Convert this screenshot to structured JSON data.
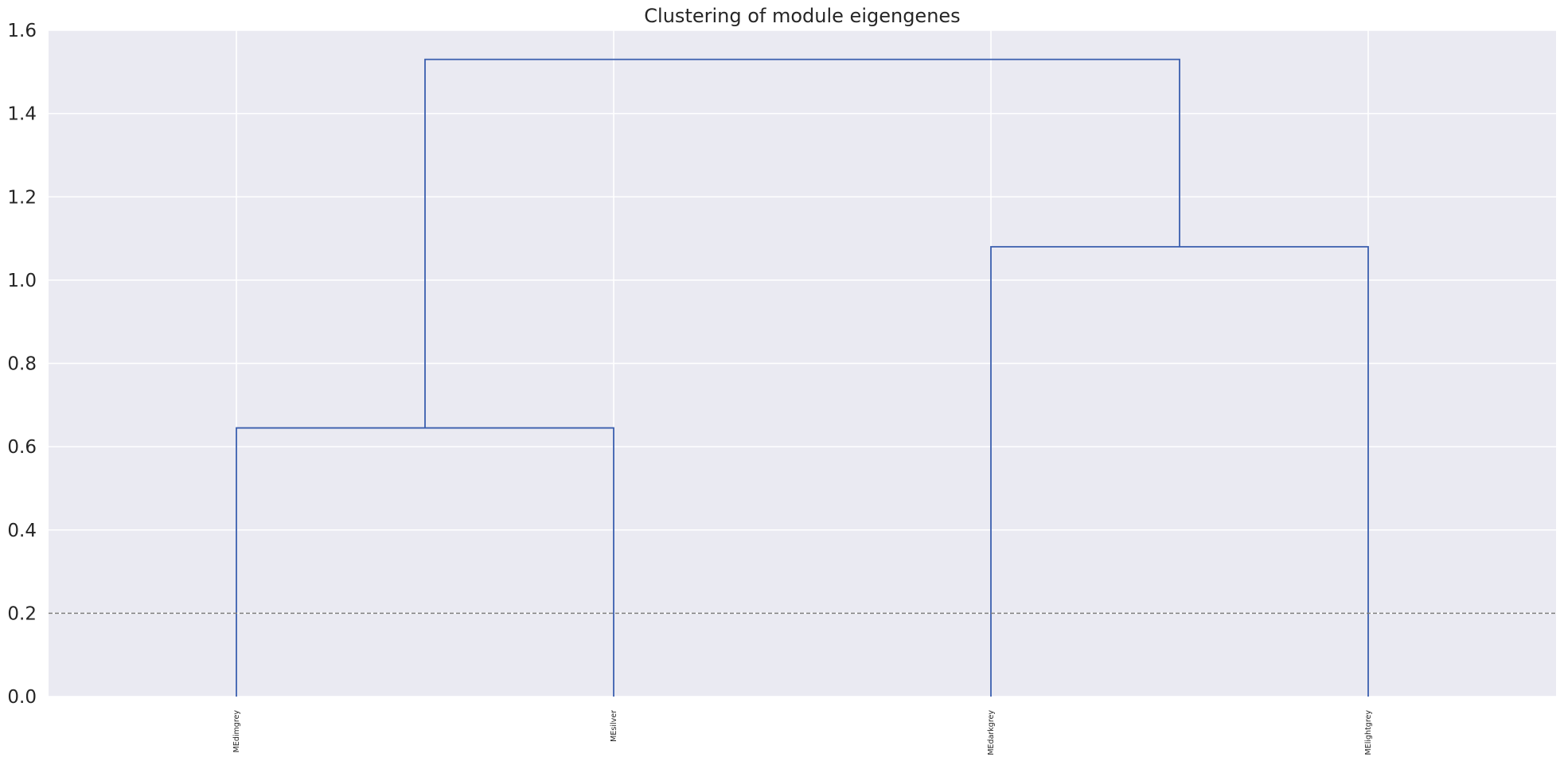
{
  "chart_data": {
    "type": "dendrogram",
    "title": "Clustering of module eigengenes",
    "leaves": [
      "MEdimgrey",
      "MEsilver",
      "MEdarkgrey",
      "MElightgrey"
    ],
    "merges": [
      {
        "left": "MEdimgrey",
        "right": "MEsilver",
        "height": 0.645
      },
      {
        "left": "MEdarkgrey",
        "right": "MElightgrey",
        "height": 1.08
      },
      {
        "left": "cluster(MEdimgrey,MEsilver)",
        "right": "cluster(MEdarkgrey,MElightgrey)",
        "height": 1.53
      }
    ],
    "cut_height": 0.2,
    "ylim": [
      0,
      1.6
    ],
    "yticks": [
      "0.0",
      "0.2",
      "0.4",
      "0.6",
      "0.8",
      "1.0",
      "1.2",
      "1.4",
      "1.6"
    ],
    "ytick_values": [
      0,
      0.2,
      0.4,
      0.6,
      0.8,
      1.0,
      1.2,
      1.4,
      1.6
    ],
    "xlabel": "",
    "ylabel": "",
    "grid": true,
    "colors": {
      "background": "#eaeaf2",
      "grid": "#ffffff",
      "link": "#3a5eae",
      "cut_line": "#808080",
      "text": "#262626"
    }
  }
}
